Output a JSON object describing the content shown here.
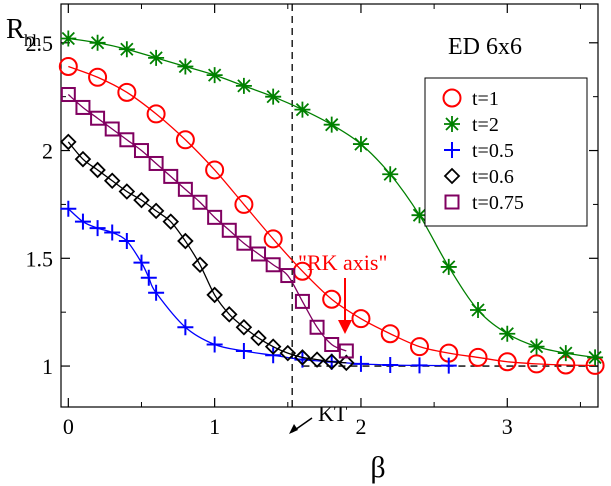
{
  "chart_data": {
    "type": "line",
    "title": "ED  6x6",
    "xlabel": "β",
    "ylabel_main": "R",
    "ylabel_sub": "hh",
    "xlim": [
      -0.05,
      3.62
    ],
    "ylim": [
      0.81,
      2.68
    ],
    "xticks": [
      0,
      1,
      2,
      3
    ],
    "xtick_labels": [
      "0",
      "1",
      "2",
      "3"
    ],
    "yticks": [
      1,
      1.5,
      2,
      2.5
    ],
    "ytick_labels": [
      "1",
      "1.5",
      "2",
      "2.5"
    ],
    "grid": false,
    "legend_position": "top-right",
    "series": [
      {
        "name": "t=1",
        "color": "#ff0000",
        "marker": "circle",
        "x": [
          0,
          0.2,
          0.4,
          0.6,
          0.8,
          1.0,
          1.2,
          1.4,
          1.6,
          1.8,
          2.0,
          2.2,
          2.4,
          2.6,
          2.8,
          3.0,
          3.2,
          3.4,
          3.6
        ],
        "y": [
          2.39,
          2.34,
          2.27,
          2.17,
          2.05,
          1.91,
          1.75,
          1.59,
          1.44,
          1.31,
          1.22,
          1.15,
          1.09,
          1.06,
          1.04,
          1.02,
          1.01,
          1.005,
          1.003
        ]
      },
      {
        "name": "t=2",
        "color": "#008000",
        "marker": "star",
        "x": [
          0,
          0.2,
          0.4,
          0.6,
          0.8,
          1.0,
          1.2,
          1.4,
          1.6,
          1.8,
          2.0,
          2.2,
          2.4,
          2.6,
          2.8,
          3.0,
          3.2,
          3.4,
          3.6
        ],
        "y": [
          2.52,
          2.5,
          2.47,
          2.43,
          2.39,
          2.35,
          2.3,
          2.25,
          2.19,
          2.12,
          2.03,
          1.89,
          1.7,
          1.46,
          1.26,
          1.15,
          1.09,
          1.06,
          1.04
        ]
      },
      {
        "name": "t=0.5",
        "color": "#0000ff",
        "marker": "plus",
        "x": [
          0,
          0.1,
          0.2,
          0.3,
          0.4,
          0.5,
          0.55,
          0.6,
          0.8,
          1.0,
          1.2,
          1.4,
          1.6,
          1.8,
          2.0,
          2.2,
          2.4,
          2.6
        ],
        "y": [
          1.73,
          1.67,
          1.64,
          1.62,
          1.58,
          1.48,
          1.41,
          1.34,
          1.18,
          1.1,
          1.07,
          1.05,
          1.03,
          1.02,
          1.01,
          1.005,
          1.003,
          1.002
        ]
      },
      {
        "name": "t=0.6",
        "color": "#000000",
        "marker": "diamond",
        "x": [
          0,
          0.1,
          0.2,
          0.3,
          0.4,
          0.5,
          0.6,
          0.7,
          0.8,
          0.9,
          1.0,
          1.1,
          1.2,
          1.3,
          1.4,
          1.5,
          1.6,
          1.7,
          1.8,
          1.9
        ],
        "y": [
          2.04,
          1.96,
          1.91,
          1.86,
          1.81,
          1.77,
          1.72,
          1.67,
          1.58,
          1.47,
          1.33,
          1.24,
          1.18,
          1.13,
          1.09,
          1.06,
          1.04,
          1.03,
          1.02,
          1.015
        ]
      },
      {
        "name": "t=0.75",
        "color": "#800060",
        "marker": "square",
        "x": [
          0,
          0.1,
          0.2,
          0.3,
          0.4,
          0.5,
          0.6,
          0.7,
          0.8,
          0.9,
          1.0,
          1.1,
          1.2,
          1.3,
          1.4,
          1.5,
          1.6,
          1.7,
          1.8,
          1.9
        ],
        "y": [
          2.26,
          2.2,
          2.15,
          2.1,
          2.05,
          2.0,
          1.94,
          1.88,
          1.82,
          1.76,
          1.69,
          1.63,
          1.57,
          1.52,
          1.47,
          1.42,
          1.3,
          1.18,
          1.1,
          1.07
        ]
      }
    ],
    "reference_lines": {
      "vertical_x": 1.53,
      "horizontal_y": 1.0
    },
    "annotations": [
      {
        "text": "\"RK axis\"",
        "color": "#ff0000",
        "points_to": [
          1.92,
          1.17
        ]
      },
      {
        "text": "KT",
        "color": "#000000",
        "points_to": [
          1.53,
          0.84
        ]
      }
    ]
  }
}
